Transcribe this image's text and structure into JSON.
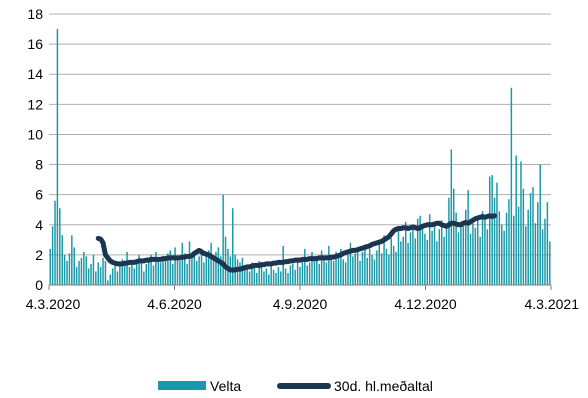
{
  "chart_data": {
    "type": "bar+line",
    "title": "",
    "xlabel": "",
    "ylabel": "",
    "ylim": [
      0,
      18
    ],
    "yticks": [
      0,
      2,
      4,
      6,
      8,
      10,
      12,
      14,
      16,
      18
    ],
    "xticks": [
      "4.3.2020",
      "4.6.2020",
      "4.9.2020",
      "4.12.2020",
      "4.3.2021"
    ],
    "grid": "horizontal",
    "legend_placement": "bottom-center",
    "colors": {
      "bars": "#1a9aa8",
      "line": "#1c3550",
      "grid": "#b0b0b0",
      "axis": "#808080"
    },
    "series": [
      {
        "name": "Velta",
        "type": "bar",
        "values": [
          2.4,
          3.9,
          5.6,
          17.0,
          5.1,
          3.3,
          2.0,
          1.6,
          2.1,
          3.3,
          2.5,
          1.2,
          1.6,
          1.8,
          2.2,
          1.9,
          1.1,
          1.4,
          2.0,
          0.9,
          1.5,
          1.2,
          1.8,
          1.6,
          0.3,
          0.7,
          1.1,
          1.5,
          0.9,
          1.3,
          1.7,
          1.4,
          2.2,
          1.2,
          1.6,
          1.1,
          1.4,
          2.0,
          1.5,
          0.9,
          1.4,
          1.8,
          2.0,
          1.3,
          2.2,
          1.7,
          1.5,
          1.9,
          1.6,
          2.1,
          2.3,
          1.4,
          2.5,
          1.8,
          1.6,
          2.8,
          2.1,
          1.4,
          2.9,
          1.8,
          2.2,
          1.6,
          1.9,
          2.4,
          1.5,
          2.1,
          2.3,
          2.8,
          1.7,
          2.2,
          2.5,
          1.9,
          6.0,
          3.2,
          2.4,
          1.9,
          5.1,
          2.0,
          1.7,
          1.5,
          1.8,
          1.3,
          1.1,
          0.9,
          1.5,
          1.2,
          0.8,
          1.6,
          1.3,
          0.9,
          1.1,
          0.7,
          1.4,
          1.0,
          0.8,
          1.2,
          0.9,
          2.6,
          1.1,
          0.8,
          1.3,
          1.4,
          1.0,
          1.6,
          1.2,
          1.8,
          2.4,
          1.3,
          1.5,
          2.2,
          1.6,
          1.9,
          1.4,
          2.3,
          1.7,
          1.5,
          2.6,
          1.8,
          1.6,
          2.2,
          1.9,
          2.4,
          1.7,
          1.5,
          2.0,
          2.8,
          1.9,
          2.1,
          2.5,
          1.6,
          2.2,
          2.7,
          1.8,
          2.4,
          2.0,
          1.7,
          2.3,
          2.9,
          2.1,
          3.3,
          2.4,
          2.0,
          3.1,
          2.6,
          2.2,
          3.8,
          2.9,
          3.2,
          4.2,
          2.8,
          3.5,
          3.9,
          3.1,
          4.4,
          4.6,
          3.8,
          3.4,
          3.0,
          4.7,
          3.6,
          4.1,
          2.9,
          3.7,
          4.3,
          3.2,
          3.9,
          5.8,
          9.0,
          6.4,
          4.8,
          3.5,
          4.2,
          3.9,
          5.0,
          6.3,
          3.4,
          4.1,
          3.8,
          4.6,
          3.2,
          4.9,
          4.4,
          3.7,
          7.2,
          7.3,
          5.8,
          6.8,
          4.9,
          4.0,
          3.6,
          4.8,
          5.7,
          13.1,
          4.6,
          8.6,
          5.2,
          8.2,
          6.4,
          3.9,
          5.0,
          6.1,
          6.5,
          4.1,
          5.5,
          8.0,
          3.7,
          4.4,
          5.5,
          2.9
        ]
      },
      {
        "name": "30d. hl.meðaltal",
        "type": "line",
        "x_start_index": 20,
        "values": [
          3.1,
          3.05,
          2.8,
          2.0,
          1.8,
          1.6,
          1.5,
          1.45,
          1.4,
          1.4,
          1.4,
          1.45,
          1.45,
          1.5,
          1.5,
          1.5,
          1.55,
          1.6,
          1.6,
          1.6,
          1.65,
          1.65,
          1.7,
          1.7,
          1.7,
          1.7,
          1.7,
          1.75,
          1.75,
          1.8,
          1.8,
          1.8,
          1.8,
          1.8,
          1.8,
          1.85,
          1.85,
          1.9,
          1.9,
          1.95,
          2.1,
          2.2,
          2.3,
          2.2,
          2.1,
          2.05,
          2.0,
          1.9,
          1.8,
          1.7,
          1.6,
          1.5,
          1.4,
          1.2,
          1.1,
          1.0,
          1.0,
          1.0,
          1.05,
          1.05,
          1.1,
          1.15,
          1.2,
          1.2,
          1.25,
          1.3,
          1.3,
          1.3,
          1.35,
          1.35,
          1.4,
          1.4,
          1.4,
          1.45,
          1.45,
          1.5,
          1.5,
          1.5,
          1.55,
          1.55,
          1.6,
          1.6,
          1.65,
          1.65,
          1.65,
          1.7,
          1.7,
          1.7,
          1.75,
          1.75,
          1.75,
          1.75,
          1.8,
          1.8,
          1.8,
          1.8,
          1.8,
          1.85,
          1.85,
          1.9,
          1.95,
          2.0,
          2.1,
          2.15,
          2.2,
          2.25,
          2.3,
          2.3,
          2.35,
          2.4,
          2.45,
          2.5,
          2.55,
          2.6,
          2.7,
          2.75,
          2.8,
          2.85,
          2.9,
          3.0,
          3.1,
          3.2,
          3.4,
          3.6,
          3.7,
          3.75,
          3.75,
          3.8,
          3.8,
          3.75,
          3.8,
          3.85,
          3.8,
          3.75,
          3.8,
          3.9,
          3.95,
          4.0,
          4.0,
          4.0,
          4.05,
          4.1,
          4.1,
          4.0,
          3.95,
          3.9,
          4.0,
          4.1,
          4.1,
          4.05,
          4.0,
          4.0,
          4.1,
          4.15,
          4.1,
          4.2,
          4.3,
          4.4,
          4.45,
          4.5,
          4.55,
          4.5,
          4.55,
          4.6,
          4.55,
          4.6
        ]
      }
    ]
  }
}
